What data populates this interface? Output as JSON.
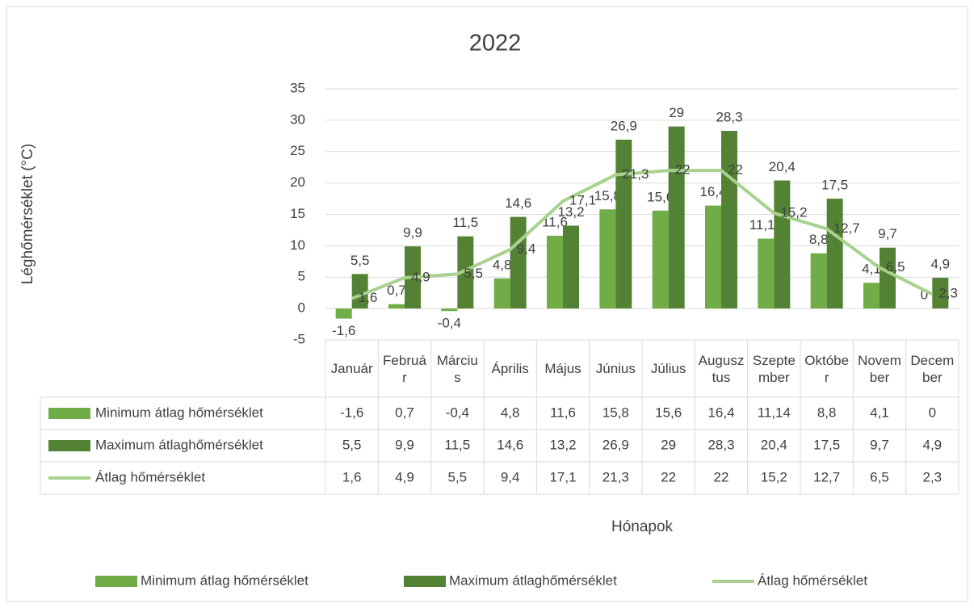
{
  "chart_data": {
    "type": "bar",
    "title": "2022",
    "y_label": "Léghőmérséklet (°C)",
    "x_label": "Hónapok",
    "categories": [
      "Január",
      "Február",
      "Március",
      "Április",
      "Május",
      "Június",
      "Július",
      "Augusztus",
      "Szeptember",
      "Október",
      "November",
      "December"
    ],
    "series": [
      {
        "name": "Minimum átlag hőmérséklet",
        "type": "bar",
        "color": "#70ad47",
        "values": [
          -1.6,
          0.7,
          -0.4,
          4.8,
          11.6,
          15.8,
          15.6,
          16.4,
          11.14,
          8.8,
          4.1,
          0
        ],
        "value_labels": [
          "-1,6",
          "0,7",
          "-0,4",
          "4,8",
          "11,6",
          "15,8",
          "15,6",
          "16,4",
          "11,14",
          "8,8",
          "4,1",
          "0"
        ]
      },
      {
        "name": "Maximum átlaghőmérséklet",
        "type": "bar",
        "color": "#548235",
        "values": [
          5.5,
          9.9,
          11.5,
          14.6,
          13.2,
          26.9,
          29,
          28.3,
          20.4,
          17.5,
          9.7,
          4.9
        ],
        "value_labels": [
          "5,5",
          "9,9",
          "11,5",
          "14,6",
          "13,2",
          "26,9",
          "29",
          "28,3",
          "20,4",
          "17,5",
          "9,7",
          "4,9"
        ]
      },
      {
        "name": "Átlag hőmérséklet",
        "type": "line",
        "color": "#a9d18e",
        "values": [
          1.6,
          4.9,
          5.5,
          9.4,
          17.1,
          21.3,
          22,
          22,
          15.2,
          12.7,
          6.5,
          2.3
        ],
        "value_labels": [
          "1,6",
          "4,9",
          "5,5",
          "9,4",
          "17,1",
          "21,3",
          "22",
          "22",
          "15,2",
          "12,7",
          "6,5",
          "2,3"
        ]
      }
    ],
    "ylim": [
      -5,
      35
    ],
    "yticks": [
      -5,
      0,
      5,
      10,
      15,
      20,
      25,
      30,
      35
    ],
    "grid": true,
    "legend": "bottom"
  }
}
